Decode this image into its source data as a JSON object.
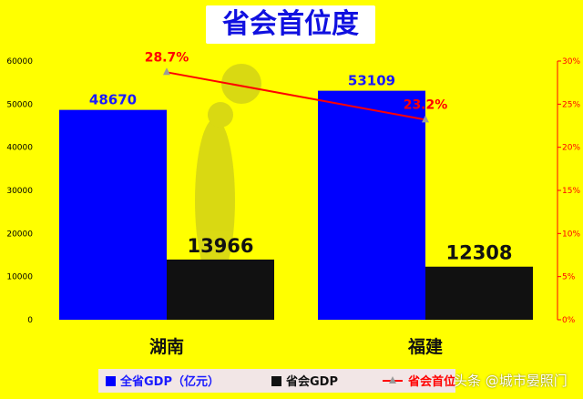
{
  "chart_data": {
    "type": "bar",
    "title": "省会首位度",
    "categories": [
      "湖南",
      "福建"
    ],
    "series": [
      {
        "name": "全省GDP（亿元）",
        "type": "bar",
        "axis": "left",
        "values": [
          48670,
          53109
        ],
        "labels": [
          "48670",
          "53109"
        ],
        "color": "#0000FF"
      },
      {
        "name": "省会GDP",
        "type": "bar",
        "axis": "left",
        "values": [
          13966,
          12308
        ],
        "labels": [
          "13966",
          "12308"
        ],
        "color": "#111111"
      },
      {
        "name": "省会首位度",
        "type": "line",
        "axis": "right",
        "values": [
          28.7,
          23.2
        ],
        "labels": [
          "28.7%",
          "23.2%"
        ],
        "color": "#FF0000"
      }
    ],
    "y_left": {
      "ylim": [
        0,
        60000
      ],
      "ticks": [
        "0",
        "10000",
        "20000",
        "30000",
        "40000",
        "50000",
        "60000"
      ]
    },
    "y_right": {
      "ylim": [
        0,
        30
      ],
      "ticks": [
        "0%",
        "5%",
        "10%",
        "15%",
        "20%",
        "25%",
        "30%"
      ]
    },
    "legend_position": "bottom",
    "grid": false
  },
  "watermark": {
    "text": "头条 @城市晏照门"
  },
  "colors": {
    "background": "#FFFF00",
    "title": "#1010E0",
    "left_axis": "#000000",
    "right_axis": "#FF0000"
  }
}
